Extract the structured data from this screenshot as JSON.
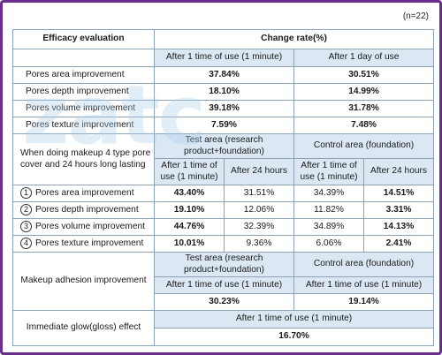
{
  "note": "(n=22)",
  "watermark_text": "zatc",
  "header": {
    "col1": "Efficacy evaluation",
    "col2": "Change rate(%)"
  },
  "section1": {
    "cond_1min": "After 1 time of use (1 minute)",
    "cond_1day": "After 1 day of use",
    "rows": [
      {
        "label": "Pores area improvement",
        "v1": "37.84%",
        "v2": "30.51%"
      },
      {
        "label": "Pores depth improvement",
        "v1": "18.10%",
        "v2": "14.99%"
      },
      {
        "label": "Pores volume improvement",
        "v1": "39.18%",
        "v2": "31.78%"
      },
      {
        "label": "Pores texture improvement",
        "v1": "7.59%",
        "v2": "7.48%"
      }
    ]
  },
  "section2": {
    "title": "When doing makeup 4 type pore cover and 24 hours long lasting",
    "test_area": "Test area (research product+foundation)",
    "control_area": "Control area (foundation)",
    "after_1min": "After 1 time of use (1 minute)",
    "after_24h": "After 24 hours",
    "rows": [
      {
        "num": "1",
        "label": "Pores area improvement",
        "t1": "43.40%",
        "t24": "31.51%",
        "c1": "34.39%",
        "c24": "14.51%"
      },
      {
        "num": "2",
        "label": "Pores depth improvement",
        "t1": "19.10%",
        "t24": "12.06%",
        "c1": "11.82%",
        "c24": "3.31%"
      },
      {
        "num": "3",
        "label": "Pores volume improvement",
        "t1": "44.76%",
        "t24": "32.39%",
        "c1": "34.89%",
        "c24": "14.13%"
      },
      {
        "num": "4",
        "label": "Pores texture improvement",
        "t1": "10.01%",
        "t24": "9.36%",
        "c1": "6.06%",
        "c24": "2.41%"
      }
    ]
  },
  "section3": {
    "label": "Makeup adhesion improvement",
    "test_area": "Test area (research product+foundation)",
    "control_area": "Control area (foundation)",
    "cond_test": "After 1 time of use (1 minute)",
    "cond_control": "After 1 time of use (1 minute)",
    "test_value": "30.23%",
    "control_value": "19.14%"
  },
  "section4": {
    "label": "Immediate glow(gloss) effect",
    "cond": "After 1 time of use (1 minute)",
    "value": "16.70%"
  }
}
